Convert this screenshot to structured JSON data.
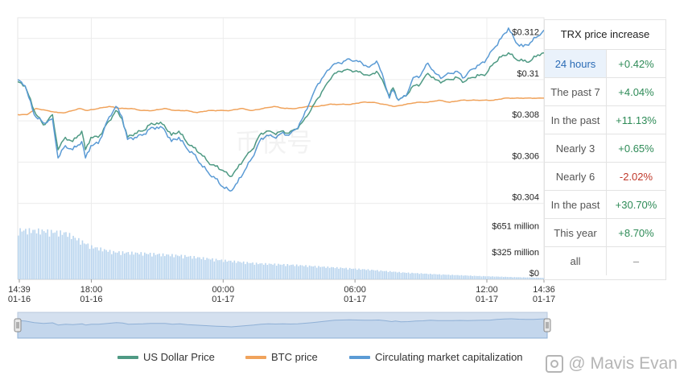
{
  "chart_data": {
    "type": "line",
    "title": "TRX price",
    "x_ticks": [
      {
        "time": "14:39",
        "date": "01-16",
        "t": 0
      },
      {
        "time": "18:00",
        "date": "01-16",
        "t": 201
      },
      {
        "time": "00:00",
        "date": "01-17",
        "t": 561
      },
      {
        "time": "06:00",
        "date": "01-17",
        "t": 921
      },
      {
        "time": "12:00",
        "date": "01-17",
        "t": 1281
      },
      {
        "time": "14:36",
        "date": "01-17",
        "t": 1437
      }
    ],
    "price_axis": {
      "ticks": [
        "$0.312",
        "$0.31",
        "$0.308",
        "$0.306",
        "$0.304"
      ],
      "tick_values": [
        0.312,
        0.31,
        0.308,
        0.306,
        0.304
      ],
      "ylim": [
        0.3034,
        0.313
      ]
    },
    "volume_axis": {
      "ticks": [
        "$651 million",
        "$325 million",
        "$0"
      ],
      "tick_values": [
        651,
        325,
        0
      ],
      "ylim": [
        0,
        800
      ]
    },
    "series": [
      {
        "name": "US Dollar Price",
        "color": "#4f9a84",
        "role": "price",
        "points": [
          [
            0,
            0.3099
          ],
          [
            20,
            0.3097
          ],
          [
            45,
            0.3085
          ],
          [
            70,
            0.3078
          ],
          [
            95,
            0.3083
          ],
          [
            110,
            0.3066
          ],
          [
            130,
            0.3072
          ],
          [
            150,
            0.307
          ],
          [
            175,
            0.3075
          ],
          [
            185,
            0.3066
          ],
          [
            200,
            0.3072
          ],
          [
            220,
            0.3072
          ],
          [
            250,
            0.308
          ],
          [
            268,
            0.3085
          ],
          [
            285,
            0.3081
          ],
          [
            300,
            0.3072
          ],
          [
            320,
            0.3074
          ],
          [
            340,
            0.3075
          ],
          [
            360,
            0.3078
          ],
          [
            380,
            0.3079
          ],
          [
            400,
            0.3078
          ],
          [
            420,
            0.3073
          ],
          [
            440,
            0.3075
          ],
          [
            460,
            0.307
          ],
          [
            480,
            0.3067
          ],
          [
            500,
            0.3064
          ],
          [
            520,
            0.306
          ],
          [
            540,
            0.3058
          ],
          [
            560,
            0.3056
          ],
          [
            580,
            0.3053
          ],
          [
            600,
            0.3057
          ],
          [
            620,
            0.3062
          ],
          [
            640,
            0.3066
          ],
          [
            660,
            0.3073
          ],
          [
            680,
            0.3075
          ],
          [
            700,
            0.3074
          ],
          [
            720,
            0.3075
          ],
          [
            740,
            0.3074
          ],
          [
            760,
            0.3076
          ],
          [
            780,
            0.308
          ],
          [
            800,
            0.3085
          ],
          [
            820,
            0.3091
          ],
          [
            840,
            0.3097
          ],
          [
            860,
            0.3102
          ],
          [
            880,
            0.3104
          ],
          [
            900,
            0.3105
          ],
          [
            920,
            0.3104
          ],
          [
            940,
            0.3103
          ],
          [
            960,
            0.3102
          ],
          [
            980,
            0.3104
          ],
          [
            1000,
            0.3098
          ],
          [
            1015,
            0.3092
          ],
          [
            1025,
            0.3096
          ],
          [
            1040,
            0.309
          ],
          [
            1060,
            0.3092
          ],
          [
            1080,
            0.3097
          ],
          [
            1100,
            0.3098
          ],
          [
            1120,
            0.3103
          ],
          [
            1140,
            0.31
          ],
          [
            1160,
            0.3099
          ],
          [
            1180,
            0.31
          ],
          [
            1200,
            0.3101
          ],
          [
            1220,
            0.3099
          ],
          [
            1240,
            0.3101
          ],
          [
            1260,
            0.3102
          ],
          [
            1280,
            0.3103
          ],
          [
            1300,
            0.3108
          ],
          [
            1320,
            0.3111
          ],
          [
            1340,
            0.3113
          ],
          [
            1360,
            0.311
          ],
          [
            1380,
            0.3109
          ],
          [
            1400,
            0.3109
          ],
          [
            1420,
            0.3112
          ],
          [
            1437,
            0.3113
          ]
        ]
      },
      {
        "name": "BTC price",
        "color": "#f0a35c",
        "role": "price",
        "points": [
          [
            0,
            0.3083
          ],
          [
            25,
            0.3083
          ],
          [
            50,
            0.3086
          ],
          [
            80,
            0.3085
          ],
          [
            110,
            0.3084
          ],
          [
            130,
            0.3084
          ],
          [
            150,
            0.3085
          ],
          [
            170,
            0.3086
          ],
          [
            190,
            0.3085
          ],
          [
            220,
            0.3086
          ],
          [
            250,
            0.3087
          ],
          [
            280,
            0.3086
          ],
          [
            310,
            0.3086
          ],
          [
            340,
            0.3085
          ],
          [
            370,
            0.3085
          ],
          [
            400,
            0.3086
          ],
          [
            430,
            0.3085
          ],
          [
            460,
            0.3085
          ],
          [
            490,
            0.3084
          ],
          [
            520,
            0.3085
          ],
          [
            550,
            0.3085
          ],
          [
            580,
            0.3085
          ],
          [
            610,
            0.3086
          ],
          [
            640,
            0.3085
          ],
          [
            670,
            0.3086
          ],
          [
            700,
            0.3087
          ],
          [
            730,
            0.3086
          ],
          [
            760,
            0.3086
          ],
          [
            790,
            0.3087
          ],
          [
            820,
            0.3087
          ],
          [
            850,
            0.3088
          ],
          [
            880,
            0.3088
          ],
          [
            910,
            0.3088
          ],
          [
            940,
            0.3089
          ],
          [
            970,
            0.3089
          ],
          [
            1000,
            0.3088
          ],
          [
            1030,
            0.3087
          ],
          [
            1060,
            0.3088
          ],
          [
            1090,
            0.3089
          ],
          [
            1120,
            0.3089
          ],
          [
            1150,
            0.309
          ],
          [
            1180,
            0.3089
          ],
          [
            1210,
            0.309
          ],
          [
            1240,
            0.309
          ],
          [
            1270,
            0.309
          ],
          [
            1300,
            0.309
          ],
          [
            1330,
            0.3091
          ],
          [
            1360,
            0.3091
          ],
          [
            1390,
            0.3091
          ],
          [
            1420,
            0.3091
          ],
          [
            1437,
            0.3091
          ]
        ]
      },
      {
        "name": "Circulating market capitalization",
        "color": "#5b9bd5",
        "role": "price",
        "points": [
          [
            0,
            0.31
          ],
          [
            20,
            0.3097
          ],
          [
            45,
            0.3083
          ],
          [
            70,
            0.3079
          ],
          [
            95,
            0.3081
          ],
          [
            110,
            0.3062
          ],
          [
            130,
            0.3068
          ],
          [
            150,
            0.3066
          ],
          [
            175,
            0.307
          ],
          [
            185,
            0.3062
          ],
          [
            200,
            0.3068
          ],
          [
            220,
            0.3069
          ],
          [
            250,
            0.3082
          ],
          [
            268,
            0.3087
          ],
          [
            285,
            0.3082
          ],
          [
            300,
            0.3071
          ],
          [
            320,
            0.3072
          ],
          [
            340,
            0.3073
          ],
          [
            360,
            0.3076
          ],
          [
            380,
            0.3077
          ],
          [
            400,
            0.3076
          ],
          [
            420,
            0.307
          ],
          [
            440,
            0.3072
          ],
          [
            460,
            0.3067
          ],
          [
            480,
            0.3064
          ],
          [
            500,
            0.3059
          ],
          [
            520,
            0.3055
          ],
          [
            540,
            0.3052
          ],
          [
            560,
            0.3048
          ],
          [
            580,
            0.3046
          ],
          [
            600,
            0.305
          ],
          [
            620,
            0.3056
          ],
          [
            640,
            0.3062
          ],
          [
            660,
            0.307
          ],
          [
            680,
            0.3073
          ],
          [
            700,
            0.3072
          ],
          [
            720,
            0.3074
          ],
          [
            740,
            0.3073
          ],
          [
            760,
            0.3076
          ],
          [
            780,
            0.3082
          ],
          [
            800,
            0.309
          ],
          [
            820,
            0.3098
          ],
          [
            840,
            0.3103
          ],
          [
            860,
            0.3107
          ],
          [
            880,
            0.3108
          ],
          [
            900,
            0.311
          ],
          [
            920,
            0.3109
          ],
          [
            940,
            0.3108
          ],
          [
            960,
            0.3106
          ],
          [
            980,
            0.3109
          ],
          [
            1000,
            0.31
          ],
          [
            1015,
            0.3091
          ],
          [
            1025,
            0.3095
          ],
          [
            1040,
            0.309
          ],
          [
            1060,
            0.3092
          ],
          [
            1080,
            0.3101
          ],
          [
            1100,
            0.3102
          ],
          [
            1120,
            0.3108
          ],
          [
            1140,
            0.3103
          ],
          [
            1160,
            0.3101
          ],
          [
            1180,
            0.3103
          ],
          [
            1200,
            0.3104
          ],
          [
            1220,
            0.3101
          ],
          [
            1240,
            0.3105
          ],
          [
            1260,
            0.3107
          ],
          [
            1280,
            0.311
          ],
          [
            1300,
            0.3115
          ],
          [
            1320,
            0.312
          ],
          [
            1340,
            0.3125
          ],
          [
            1360,
            0.3118
          ],
          [
            1380,
            0.3116
          ],
          [
            1400,
            0.3118
          ],
          [
            1420,
            0.3121
          ],
          [
            1437,
            0.3124
          ]
        ]
      }
    ],
    "volume": {
      "name": "Volume",
      "color": "#b8d4ee",
      "points": [
        [
          0,
          648
        ],
        [
          60,
          640
        ],
        [
          130,
          610
        ],
        [
          200,
          430
        ],
        [
          260,
          360
        ],
        [
          350,
          340
        ],
        [
          450,
          310
        ],
        [
          560,
          250
        ],
        [
          650,
          210
        ],
        [
          750,
          190
        ],
        [
          850,
          160
        ],
        [
          950,
          130
        ],
        [
          1050,
          90
        ],
        [
          1150,
          65
        ],
        [
          1250,
          45
        ],
        [
          1350,
          30
        ],
        [
          1437,
          20
        ]
      ]
    }
  },
  "stats": {
    "title": "TRX price increase",
    "rows": [
      {
        "period": "24 hours",
        "change": "+0.42%",
        "tone": "pos",
        "active": true
      },
      {
        "period": "The past 7",
        "change": "+4.04%",
        "tone": "pos"
      },
      {
        "period": "In the past",
        "change": "+11.13%",
        "tone": "pos"
      },
      {
        "period": "Nearly 3",
        "change": "+0.65%",
        "tone": "pos"
      },
      {
        "period": "Nearly 6",
        "change": "-2.02%",
        "tone": "neg"
      },
      {
        "period": "In the past",
        "change": "+30.70%",
        "tone": "pos"
      },
      {
        "period": "This year",
        "change": "+8.70%",
        "tone": "pos"
      },
      {
        "period": "all",
        "change": "–",
        "tone": "neu"
      }
    ]
  },
  "legend": [
    {
      "label": "US Dollar Price",
      "color": "#4f9a84"
    },
    {
      "label": "BTC price",
      "color": "#f0a35c"
    },
    {
      "label": "Circulating market capitalization",
      "color": "#5b9bd5"
    }
  ],
  "chart_watermark": "币快号",
  "watermark": {
    "text": "@ Mavis Evan"
  }
}
